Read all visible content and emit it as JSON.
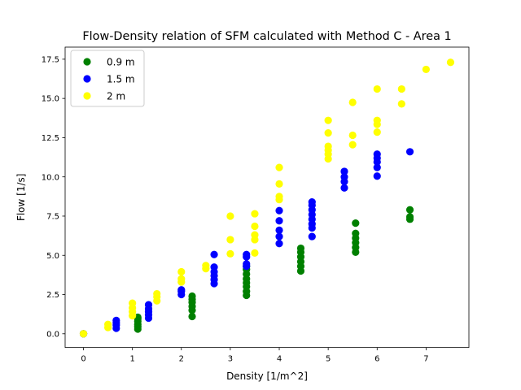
{
  "chart_data": {
    "type": "scatter",
    "title": "Flow-Density relation of SFM calculated with Method C - Area 1",
    "xlabel": "Density [1/m^2]",
    "ylabel": "Flow [1/s]",
    "xlim": [
      -0.375,
      7.875
    ],
    "ylim": [
      -0.87,
      18.27
    ],
    "xticks": [
      0,
      1,
      2,
      3,
      4,
      5,
      6,
      7
    ],
    "xtick_labels": [
      "0",
      "1",
      "2",
      "3",
      "4",
      "5",
      "6",
      "7"
    ],
    "yticks": [
      0.0,
      2.5,
      5.0,
      7.5,
      10.0,
      12.5,
      15.0,
      17.5
    ],
    "ytick_labels": [
      "0.0",
      "2.5",
      "5.0",
      "7.5",
      "10.0",
      "12.5",
      "15.0",
      "17.5"
    ],
    "grid": false,
    "legend_position": "top-left",
    "series": [
      {
        "name": "0.9 m",
        "color": "#008000",
        "points": [
          [
            0,
            0
          ],
          [
            0,
            0
          ],
          [
            1.11,
            0.3
          ],
          [
            1.11,
            0.45
          ],
          [
            1.11,
            0.6
          ],
          [
            1.11,
            0.8
          ],
          [
            1.11,
            0.95
          ],
          [
            1.11,
            1.05
          ],
          [
            2.22,
            1.1
          ],
          [
            2.22,
            1.5
          ],
          [
            2.22,
            1.75
          ],
          [
            2.22,
            2.0
          ],
          [
            2.22,
            2.2
          ],
          [
            2.22,
            2.4
          ],
          [
            3.33,
            2.45
          ],
          [
            3.33,
            2.7
          ],
          [
            3.33,
            3.0
          ],
          [
            3.33,
            3.25
          ],
          [
            3.33,
            3.5
          ],
          [
            3.33,
            3.8
          ],
          [
            3.33,
            4.1
          ],
          [
            3.33,
            4.3
          ],
          [
            4.44,
            4.0
          ],
          [
            4.44,
            4.3
          ],
          [
            4.44,
            4.6
          ],
          [
            4.44,
            4.9
          ],
          [
            4.44,
            5.2
          ],
          [
            4.44,
            5.45
          ],
          [
            5.56,
            5.2
          ],
          [
            5.56,
            5.5
          ],
          [
            5.56,
            5.8
          ],
          [
            5.56,
            6.1
          ],
          [
            5.56,
            6.4
          ],
          [
            5.56,
            7.05
          ],
          [
            6.67,
            7.3
          ],
          [
            6.67,
            7.45
          ],
          [
            6.67,
            7.9
          ]
        ]
      },
      {
        "name": "1.5 m",
        "color": "#0000ff",
        "points": [
          [
            0,
            0
          ],
          [
            0,
            0
          ],
          [
            0.67,
            0.35
          ],
          [
            0.67,
            0.55
          ],
          [
            0.67,
            0.7
          ],
          [
            0.67,
            0.85
          ],
          [
            1.33,
            1.0
          ],
          [
            1.33,
            1.2
          ],
          [
            1.33,
            1.4
          ],
          [
            1.33,
            1.6
          ],
          [
            1.33,
            1.85
          ],
          [
            2.0,
            2.5
          ],
          [
            2.0,
            2.7
          ],
          [
            2.0,
            2.8
          ],
          [
            2.67,
            3.2
          ],
          [
            2.67,
            3.45
          ],
          [
            2.67,
            3.7
          ],
          [
            2.67,
            3.95
          ],
          [
            2.67,
            4.25
          ],
          [
            2.67,
            5.05
          ],
          [
            3.33,
            4.3
          ],
          [
            3.33,
            4.45
          ],
          [
            3.33,
            4.9
          ],
          [
            3.33,
            5.05
          ],
          [
            4.0,
            5.75
          ],
          [
            4.0,
            6.2
          ],
          [
            4.0,
            6.6
          ],
          [
            4.0,
            7.2
          ],
          [
            4.0,
            7.85
          ],
          [
            4.67,
            6.2
          ],
          [
            4.67,
            6.75
          ],
          [
            4.67,
            7.0
          ],
          [
            4.67,
            7.3
          ],
          [
            4.67,
            7.6
          ],
          [
            4.67,
            7.9
          ],
          [
            4.67,
            8.2
          ],
          [
            4.67,
            8.4
          ],
          [
            5.33,
            9.3
          ],
          [
            5.33,
            9.7
          ],
          [
            5.33,
            10.0
          ],
          [
            5.33,
            10.35
          ],
          [
            6.0,
            10.05
          ],
          [
            6.0,
            10.6
          ],
          [
            6.0,
            10.95
          ],
          [
            6.0,
            11.2
          ],
          [
            6.0,
            11.45
          ],
          [
            6.67,
            11.6
          ]
        ]
      },
      {
        "name": "2 m",
        "color": "#ffff00",
        "points": [
          [
            0,
            0
          ],
          [
            0,
            0
          ],
          [
            0.5,
            0.4
          ],
          [
            0.5,
            0.6
          ],
          [
            1.0,
            1.15
          ],
          [
            1.0,
            1.4
          ],
          [
            1.0,
            1.65
          ],
          [
            1.0,
            1.95
          ],
          [
            1.5,
            2.1
          ],
          [
            1.5,
            2.35
          ],
          [
            1.5,
            2.55
          ],
          [
            2.0,
            3.3
          ],
          [
            2.0,
            3.5
          ],
          [
            2.0,
            3.95
          ],
          [
            2.5,
            4.15
          ],
          [
            2.5,
            4.35
          ],
          [
            3.0,
            5.1
          ],
          [
            3.0,
            6.0
          ],
          [
            3.0,
            7.5
          ],
          [
            3.5,
            5.15
          ],
          [
            3.5,
            6.0
          ],
          [
            3.5,
            6.3
          ],
          [
            3.5,
            6.85
          ],
          [
            3.5,
            7.65
          ],
          [
            4.0,
            8.55
          ],
          [
            4.0,
            8.75
          ],
          [
            4.0,
            9.55
          ],
          [
            4.0,
            10.6
          ],
          [
            5.0,
            11.15
          ],
          [
            5.0,
            11.45
          ],
          [
            5.0,
            11.7
          ],
          [
            5.0,
            11.95
          ],
          [
            5.0,
            12.8
          ],
          [
            5.0,
            13.6
          ],
          [
            5.5,
            12.05
          ],
          [
            5.5,
            12.65
          ],
          [
            5.5,
            14.75
          ],
          [
            6.0,
            12.85
          ],
          [
            6.0,
            13.35
          ],
          [
            6.0,
            13.6
          ],
          [
            6.0,
            15.6
          ],
          [
            6.5,
            14.65
          ],
          [
            6.5,
            15.6
          ],
          [
            7.0,
            16.85
          ],
          [
            7.5,
            17.3
          ]
        ]
      }
    ]
  }
}
